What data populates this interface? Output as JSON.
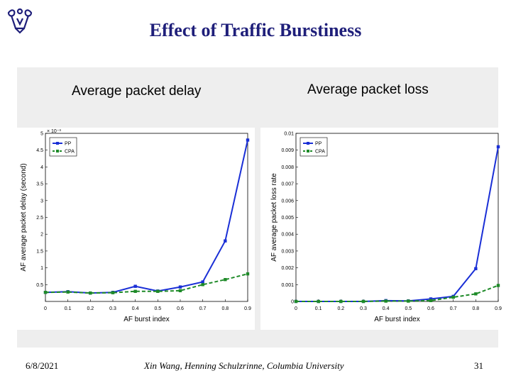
{
  "slide": {
    "title": "Effect of Traffic Burstiness",
    "footer_date": "6/8/2021",
    "footer_author": "Xin Wang, Henning Schulzrinne, Columbia University",
    "page_number": "31",
    "logo_icon": "columbia-crown-icon"
  },
  "colors": {
    "title": "#1f1f7a",
    "pp": "#1a2fd6",
    "cpa": "#1e8a28"
  },
  "chart_data": [
    {
      "type": "line",
      "caption": "Average packet delay",
      "xlabel": "AF burst index",
      "ylabel": "AF average packet delay (second)",
      "y_multiplier_label": "× 10⁻³",
      "x": [
        0,
        0.1,
        0.2,
        0.3,
        0.4,
        0.5,
        0.6,
        0.7,
        0.8,
        0.9
      ],
      "x_tick_labels": [
        "0",
        "0.1",
        "0.2",
        "0.3",
        "0.4",
        "0.5",
        "0.6",
        "0.7",
        "0.8",
        "0.9"
      ],
      "xlim": [
        0,
        0.9
      ],
      "ylim": [
        0,
        5
      ],
      "y_ticks": [
        0.5,
        1,
        1.5,
        2,
        2.5,
        3,
        3.5,
        4,
        4.5,
        5
      ],
      "y_tick_labels": [
        "0.5",
        "1",
        "1.5",
        "2",
        "2.5",
        "3",
        "3.5",
        "4",
        "4.5",
        "5"
      ],
      "legend": [
        "PP",
        "CPA"
      ],
      "series": [
        {
          "name": "PP",
          "style": "solid",
          "values": [
            0.27,
            0.29,
            0.25,
            0.27,
            0.45,
            0.31,
            0.43,
            0.58,
            1.8,
            4.8
          ]
        },
        {
          "name": "CPA",
          "style": "dashed",
          "values": [
            0.27,
            0.28,
            0.25,
            0.26,
            0.3,
            0.3,
            0.32,
            0.5,
            0.65,
            0.82
          ]
        }
      ]
    },
    {
      "type": "line",
      "caption": "Average packet loss",
      "xlabel": "AF burst index",
      "ylabel": "AF average packet loss rate",
      "x": [
        0,
        0.1,
        0.2,
        0.3,
        0.4,
        0.5,
        0.6,
        0.7,
        0.8,
        0.9
      ],
      "x_tick_labels": [
        "0",
        "0.1",
        "0.2",
        "0.3",
        "0.4",
        "0.5",
        "0.6",
        "0.7",
        "0.8",
        "0.9"
      ],
      "xlim": [
        0,
        0.9
      ],
      "ylim": [
        0,
        0.01
      ],
      "y_ticks": [
        0,
        0.001,
        0.002,
        0.003,
        0.004,
        0.005,
        0.006,
        0.007,
        0.008,
        0.009,
        0.01
      ],
      "y_tick_labels": [
        "0",
        "0.001",
        "0.002",
        "0.003",
        "0.004",
        "0.005",
        "0.006",
        "0.007",
        "0.008",
        "0.009",
        "0.01"
      ],
      "legend": [
        "PP",
        "CPA"
      ],
      "series": [
        {
          "name": "PP",
          "style": "solid",
          "values": [
            0,
            0,
            0,
            0,
            5e-05,
            3e-05,
            0.00015,
            0.0003,
            0.00195,
            0.0092
          ]
        },
        {
          "name": "CPA",
          "style": "dashed",
          "values": [
            0,
            0,
            0,
            0,
            2e-05,
            2e-05,
            5e-05,
            0.00025,
            0.00045,
            0.00095
          ]
        }
      ]
    }
  ]
}
